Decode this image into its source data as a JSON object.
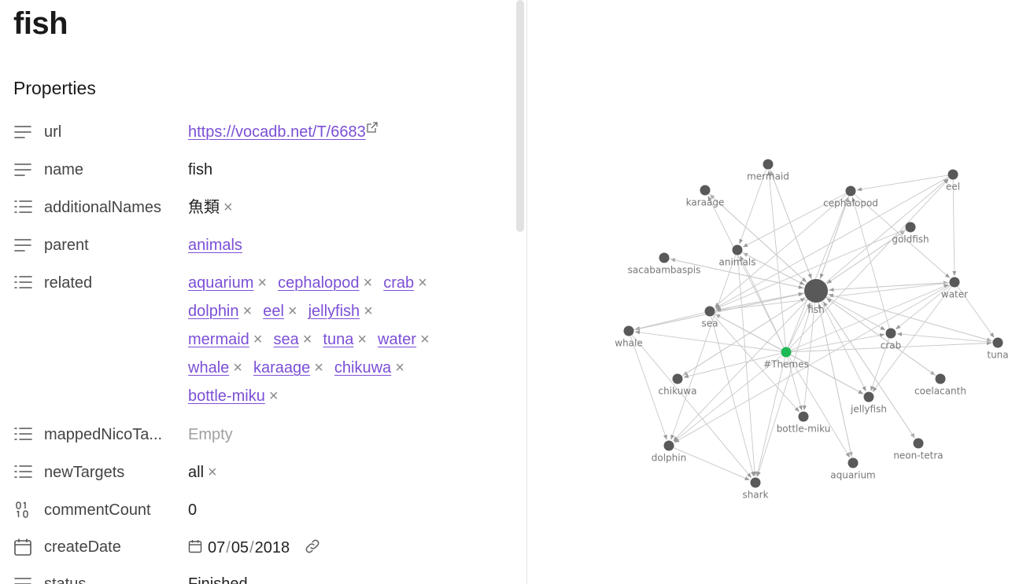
{
  "page": {
    "title": "fish",
    "properties_heading": "Properties"
  },
  "properties": {
    "url": {
      "label": "url",
      "value": "https://vocadb.net/T/6683"
    },
    "name": {
      "label": "name",
      "value": "fish"
    },
    "additionalNames": {
      "label": "additionalNames",
      "value": "魚類",
      "remove": "×"
    },
    "parent": {
      "label": "parent",
      "value": "animals"
    },
    "related": {
      "label": "related",
      "items": [
        "aquarium",
        "cephalopod",
        "crab",
        "dolphin",
        "eel",
        "jellyfish",
        "mermaid",
        "sea",
        "tuna",
        "water",
        "whale",
        "karaage",
        "chikuwa",
        "bottle-miku"
      ],
      "remove": "×"
    },
    "mappedNicoTags": {
      "label": "mappedNicoTa...",
      "value": "Empty"
    },
    "newTargets": {
      "label": "newTargets",
      "value": "all",
      "remove": "×"
    },
    "commentCount": {
      "label": "commentCount",
      "value": "0"
    },
    "createDate": {
      "label": "createDate",
      "month": "07",
      "day": "05",
      "year": "2018",
      "sep": "/"
    },
    "status": {
      "label": "status",
      "value": "Finished"
    }
  },
  "graph": {
    "node_color": "#595959",
    "current_node_color": "#1db954",
    "edge_color": "#c8c8c8",
    "arrow_color": "#999999",
    "nodes": [
      {
        "id": "fish",
        "label": "fish",
        "hub": true
      },
      {
        "id": "themes",
        "label": "#Themes",
        "current": true
      },
      {
        "id": "mermaid",
        "label": "mermaid"
      },
      {
        "id": "karaage",
        "label": "karaage"
      },
      {
        "id": "cephalopod",
        "label": "cephalopod"
      },
      {
        "id": "eel",
        "label": "eel"
      },
      {
        "id": "goldfish",
        "label": "goldfish"
      },
      {
        "id": "animals",
        "label": "animals"
      },
      {
        "id": "sacabambaspis",
        "label": "sacabambaspis"
      },
      {
        "id": "water",
        "label": "water"
      },
      {
        "id": "sea",
        "label": "sea"
      },
      {
        "id": "whale",
        "label": "whale"
      },
      {
        "id": "crab",
        "label": "crab"
      },
      {
        "id": "tuna",
        "label": "tuna"
      },
      {
        "id": "chikuwa",
        "label": "chikuwa"
      },
      {
        "id": "coelacanth",
        "label": "coelacanth"
      },
      {
        "id": "jellyfish",
        "label": "jellyfish"
      },
      {
        "id": "bottle-miku",
        "label": "bottle-miku"
      },
      {
        "id": "dolphin",
        "label": "dolphin"
      },
      {
        "id": "neon-tetra",
        "label": "neon-tetra"
      },
      {
        "id": "aquarium",
        "label": "aquarium"
      },
      {
        "id": "shark",
        "label": "shark"
      }
    ],
    "edges": [
      [
        "fish",
        "mermaid"
      ],
      [
        "fish",
        "karaage"
      ],
      [
        "fish",
        "cephalopod"
      ],
      [
        "fish",
        "eel"
      ],
      [
        "fish",
        "animals"
      ],
      [
        "fish",
        "sacabambaspis"
      ],
      [
        "fish",
        "water"
      ],
      [
        "fish",
        "sea"
      ],
      [
        "fish",
        "whale"
      ],
      [
        "fish",
        "crab"
      ],
      [
        "fish",
        "tuna"
      ],
      [
        "fish",
        "chikuwa"
      ],
      [
        "fish",
        "jellyfish"
      ],
      [
        "fish",
        "bottle-miku"
      ],
      [
        "fish",
        "dolphin"
      ],
      [
        "fish",
        "aquarium"
      ],
      [
        "fish",
        "shark"
      ],
      [
        "fish",
        "goldfish"
      ],
      [
        "fish",
        "coelacanth"
      ],
      [
        "fish",
        "neon-tetra"
      ],
      [
        "themes",
        "fish"
      ],
      [
        "themes",
        "animals"
      ],
      [
        "themes",
        "water"
      ],
      [
        "themes",
        "sea"
      ],
      [
        "themes",
        "cephalopod"
      ],
      [
        "themes",
        "crab"
      ],
      [
        "themes",
        "tuna"
      ],
      [
        "themes",
        "whale"
      ],
      [
        "themes",
        "mermaid"
      ],
      [
        "themes",
        "jellyfish"
      ],
      [
        "themes",
        "aquarium"
      ],
      [
        "themes",
        "dolphin"
      ],
      [
        "themes",
        "shark"
      ],
      [
        "themes",
        "eel"
      ],
      [
        "themes",
        "chikuwa"
      ],
      [
        "themes",
        "bottle-miku"
      ],
      [
        "themes",
        "karaage"
      ],
      [
        "animals",
        "fish"
      ],
      [
        "mermaid",
        "fish"
      ],
      [
        "cephalopod",
        "fish"
      ],
      [
        "water",
        "fish"
      ],
      [
        "sea",
        "fish"
      ],
      [
        "goldfish",
        "fish"
      ],
      [
        "sacabambaspis",
        "fish"
      ],
      [
        "coelacanth",
        "fish"
      ],
      [
        "neon-tetra",
        "fish"
      ],
      [
        "eel",
        "cephalopod"
      ],
      [
        "eel",
        "water"
      ],
      [
        "cephalopod",
        "water"
      ],
      [
        "water",
        "tuna"
      ],
      [
        "sea",
        "whale"
      ],
      [
        "water",
        "crab"
      ],
      [
        "water",
        "jellyfish"
      ],
      [
        "water",
        "sea"
      ],
      [
        "water",
        "dolphin"
      ],
      [
        "tuna",
        "crab"
      ],
      [
        "crab",
        "jellyfish"
      ],
      [
        "cephalopod",
        "sea"
      ],
      [
        "cephalopod",
        "animals"
      ],
      [
        "jellyfish",
        "sea"
      ],
      [
        "whale",
        "dolphin"
      ],
      [
        "whale",
        "shark"
      ],
      [
        "dolphin",
        "shark"
      ],
      [
        "aquarium",
        "fish"
      ],
      [
        "chikuwa",
        "fish"
      ],
      [
        "animals",
        "dolphin"
      ],
      [
        "sea",
        "shark"
      ],
      [
        "mermaid",
        "animals"
      ],
      [
        "karaage",
        "fish"
      ],
      [
        "tuna",
        "fish"
      ],
      [
        "whale",
        "fish"
      ],
      [
        "crab",
        "cephalopod"
      ],
      [
        "sea",
        "jellyfish"
      ],
      [
        "goldfish",
        "sea"
      ],
      [
        "eel",
        "sea"
      ],
      [
        "sea",
        "bottle-miku"
      ],
      [
        "animals",
        "shark"
      ]
    ]
  }
}
